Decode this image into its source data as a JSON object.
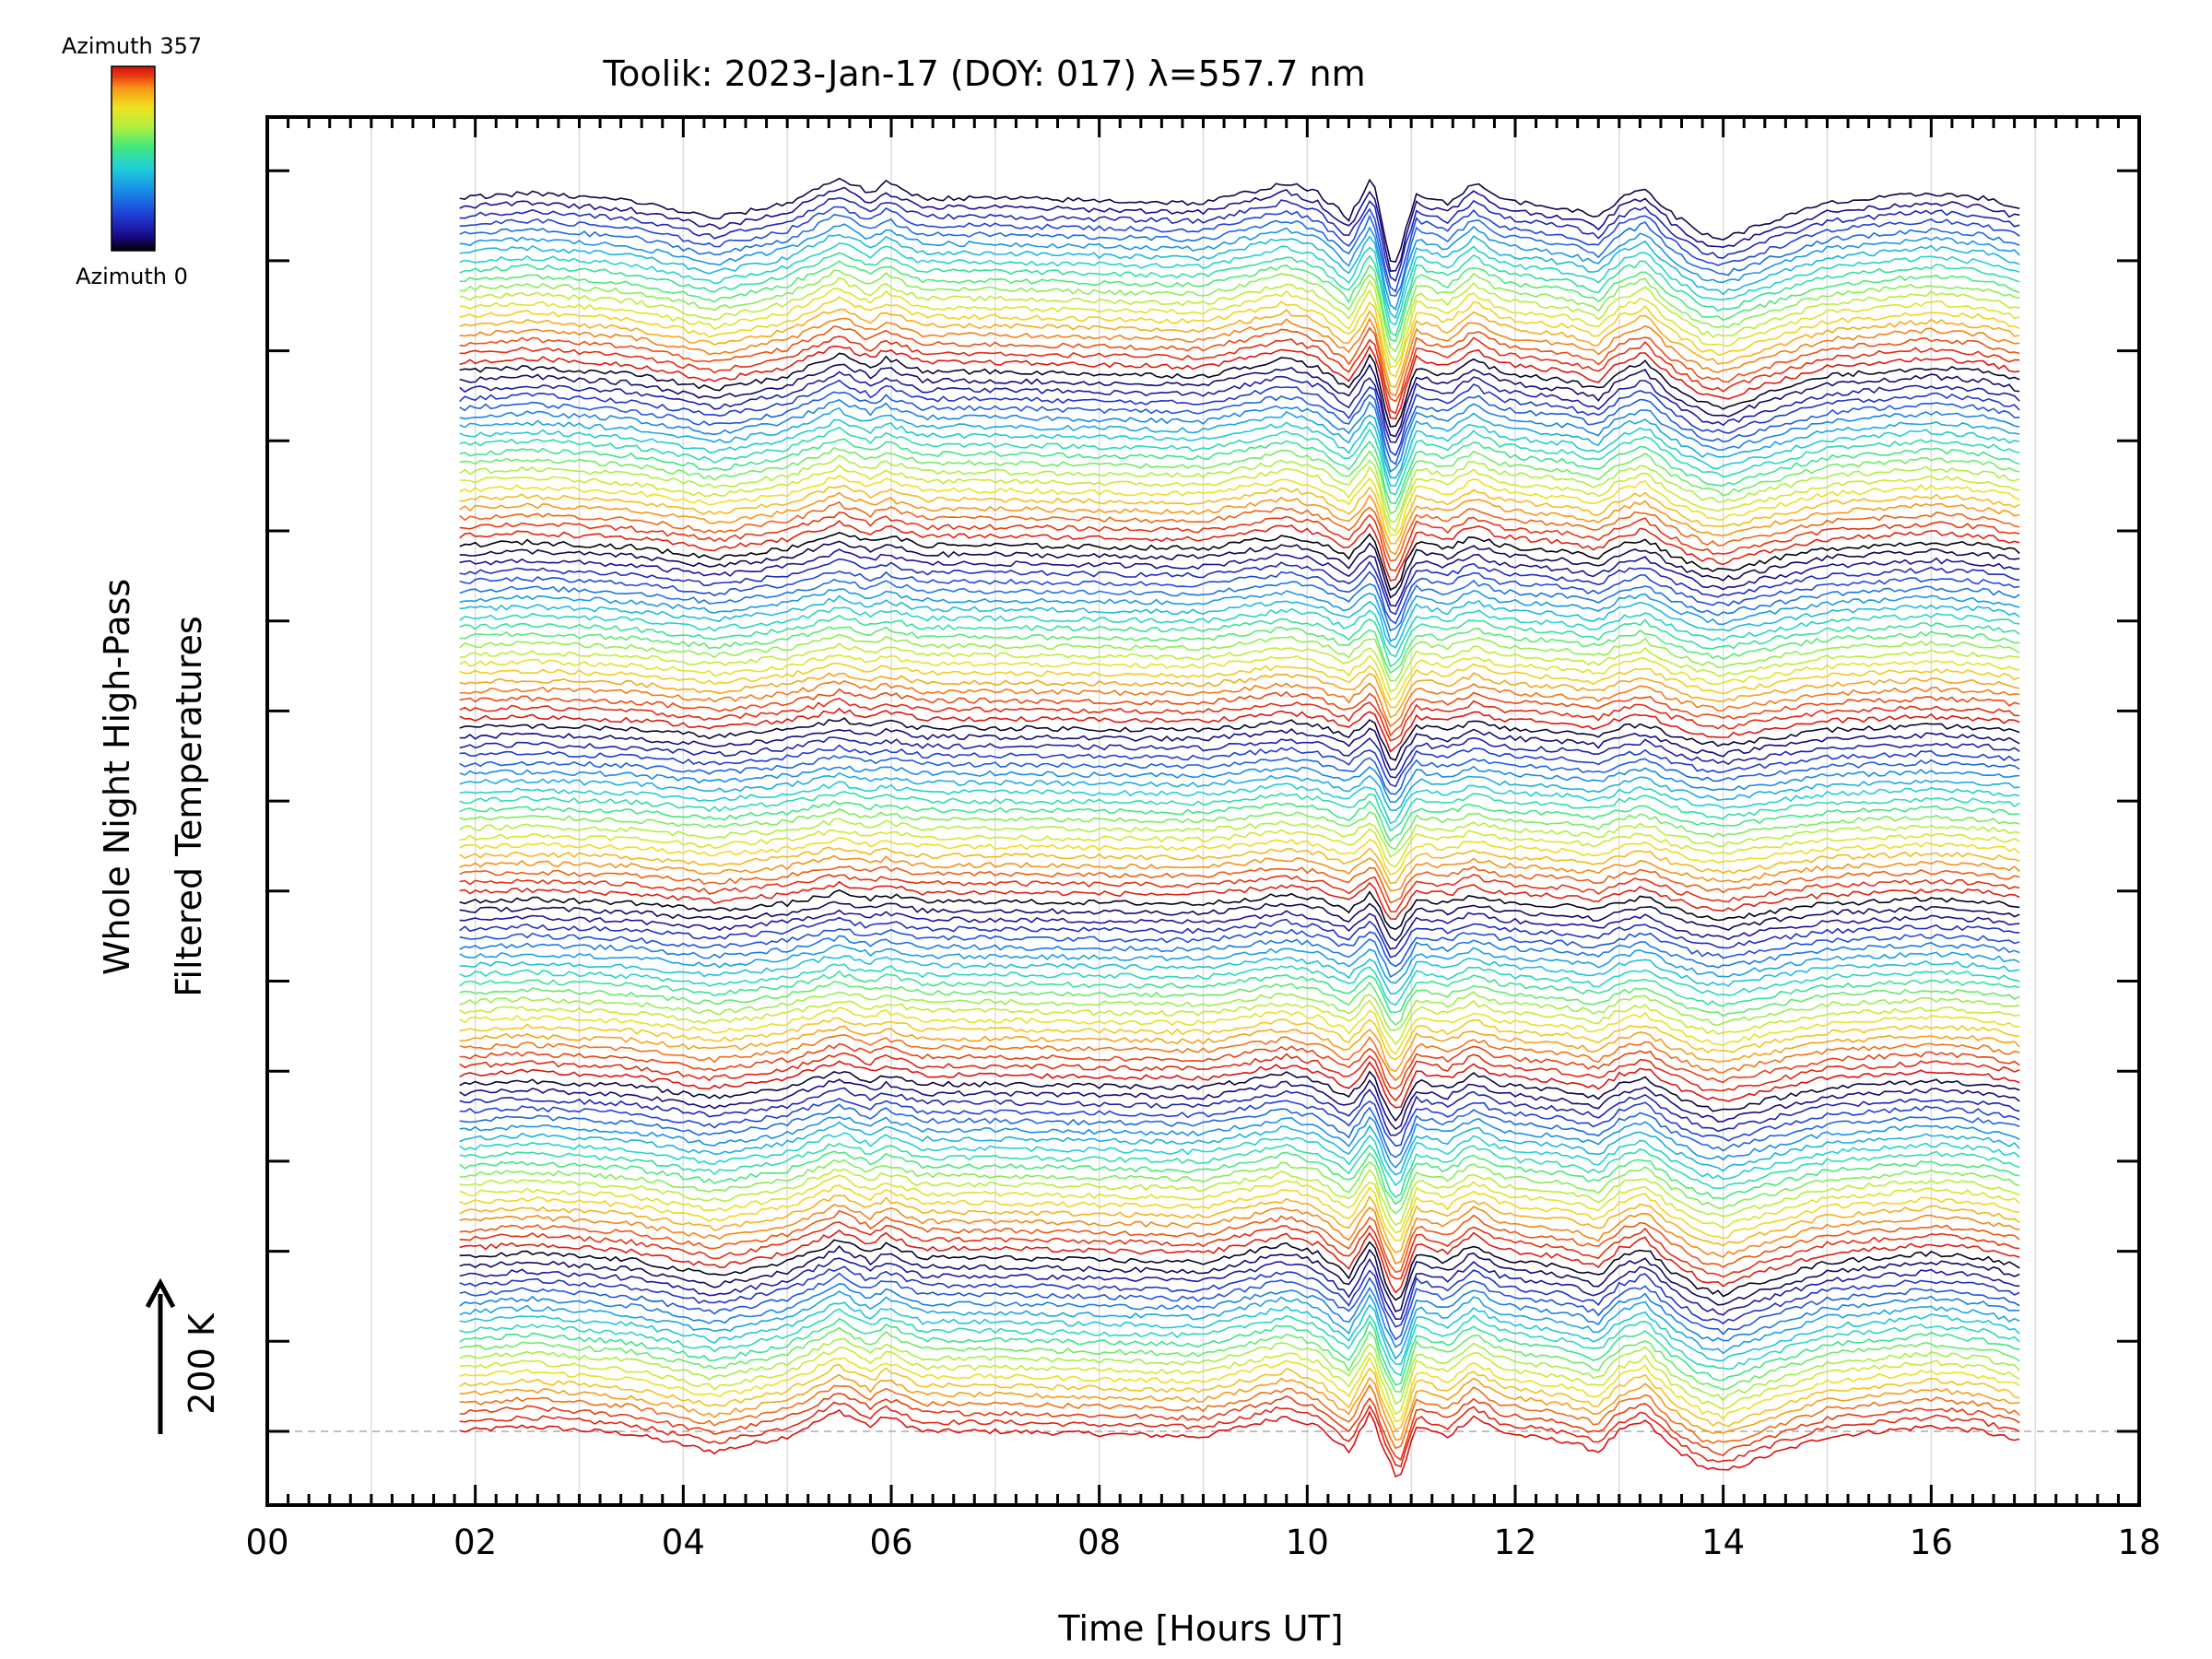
{
  "chart_data": {
    "type": "line",
    "title": "Toolik: 2023-Jan-17 (DOY: 017) λ=557.7 nm",
    "xlabel": "Time [Hours UT]",
    "ylabel_line1": "Whole Night High-Pass",
    "ylabel_line2": "Filtered Temperatures",
    "scale_label": "200 K",
    "xlim": [
      0,
      18
    ],
    "x_tick_labels": [
      "00",
      "02",
      "04",
      "06",
      "08",
      "10",
      "12",
      "14",
      "16",
      "18"
    ],
    "x_data_range": [
      1.85,
      16.85
    ],
    "grid": "vertical lines every 1 hour",
    "colorbar": {
      "label_top": "Azimuth 357",
      "label_bottom": "Azimuth 0",
      "colors": [
        "#000000",
        "#1a0a8c",
        "#2040d8",
        "#1890e8",
        "#20d0d8",
        "#40e880",
        "#b0f040",
        "#f0e020",
        "#f89818",
        "#e83810",
        "#d81010"
      ]
    },
    "series_count": 136,
    "azimuth_cycles": 7,
    "bottom_trace": {
      "x": [
        1.85,
        2.5,
        3.5,
        4.3,
        5.0,
        5.5,
        5.8,
        5.95,
        6.3,
        7.0,
        8.0,
        9.0,
        9.4,
        9.8,
        10.1,
        10.4,
        10.62,
        10.72,
        10.88,
        11.05,
        11.35,
        11.6,
        11.85,
        12.1,
        12.5,
        12.8,
        13.0,
        13.25,
        13.5,
        13.8,
        14.0,
        14.4,
        15.0,
        16.0,
        16.5,
        16.85
      ],
      "y_offset": [
        0,
        10,
        -5,
        -40,
        -10,
        40,
        10,
        30,
        0,
        0,
        -5,
        -10,
        10,
        30,
        10,
        -40,
        40,
        -30,
        -100,
        10,
        -10,
        30,
        0,
        -10,
        -20,
        -40,
        0,
        20,
        -30,
        -70,
        -80,
        -50,
        -10,
        10,
        0,
        -20
      ]
    }
  }
}
